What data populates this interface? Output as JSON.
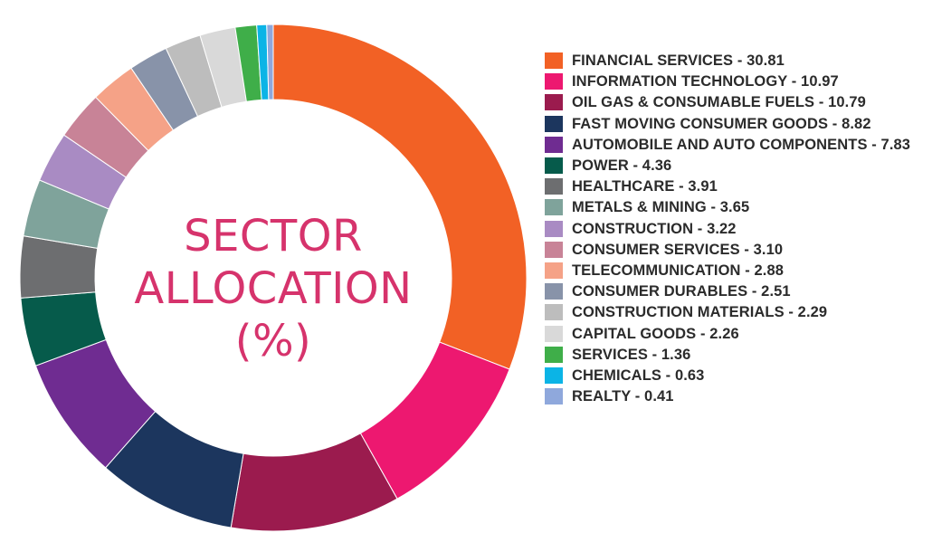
{
  "chart_data": {
    "type": "pie",
    "title": "SECTOR ALLOCATION (%)",
    "title_lines": [
      "SECTOR",
      "ALLOCATION",
      "(%)"
    ],
    "legend_position": "right",
    "slices": [
      {
        "label": "FINANCIAL SERVICES - 30.81",
        "value": 30.81,
        "color": "#f26125"
      },
      {
        "label": "INFORMATION TECHNOLOGY - 10.97",
        "value": 10.97,
        "color": "#ed1870"
      },
      {
        "label": "OIL GAS & CONSUMABLE FUELS - 10.79",
        "value": 10.79,
        "color": "#9b1b4e"
      },
      {
        "label": "FAST MOVING CONSUMER GOODS - 8.82",
        "value": 8.82,
        "color": "#1c365e"
      },
      {
        "label": "AUTOMOBILE AND AUTO COMPONENTS - 7.83",
        "value": 7.83,
        "color": "#6f2c91"
      },
      {
        "label": "POWER - 4.36",
        "value": 4.36,
        "color": "#065b4b"
      },
      {
        "label": "HEALTHCARE - 3.91",
        "value": 3.91,
        "color": "#6d6e70"
      },
      {
        "label": "METALS & MINING - 3.65",
        "value": 3.65,
        "color": "#7fa39b"
      },
      {
        "label": "CONSTRUCTION - 3.22",
        "value": 3.22,
        "color": "#a98bc3"
      },
      {
        "label": "CONSUMER SERVICES - 3.10",
        "value": 3.1,
        "color": "#c88397"
      },
      {
        "label": "TELECOMMUNICATION - 2.88",
        "value": 2.88,
        "color": "#f5a287"
      },
      {
        "label": "CONSUMER DURABLES - 2.51",
        "value": 2.51,
        "color": "#8893a9"
      },
      {
        "label": "CONSTRUCTION MATERIALS - 2.29",
        "value": 2.29,
        "color": "#bdbdbd"
      },
      {
        "label": "CAPITAL GOODS - 2.26",
        "value": 2.26,
        "color": "#d9d9d9"
      },
      {
        "label": "SERVICES - 1.36",
        "value": 1.36,
        "color": "#3fae49"
      },
      {
        "label": "CHEMICALS - 0.63",
        "value": 0.63,
        "color": "#0bb4e6"
      },
      {
        "label": "REALTY - 0.41",
        "value": 0.41,
        "color": "#8fa8dc"
      }
    ]
  }
}
